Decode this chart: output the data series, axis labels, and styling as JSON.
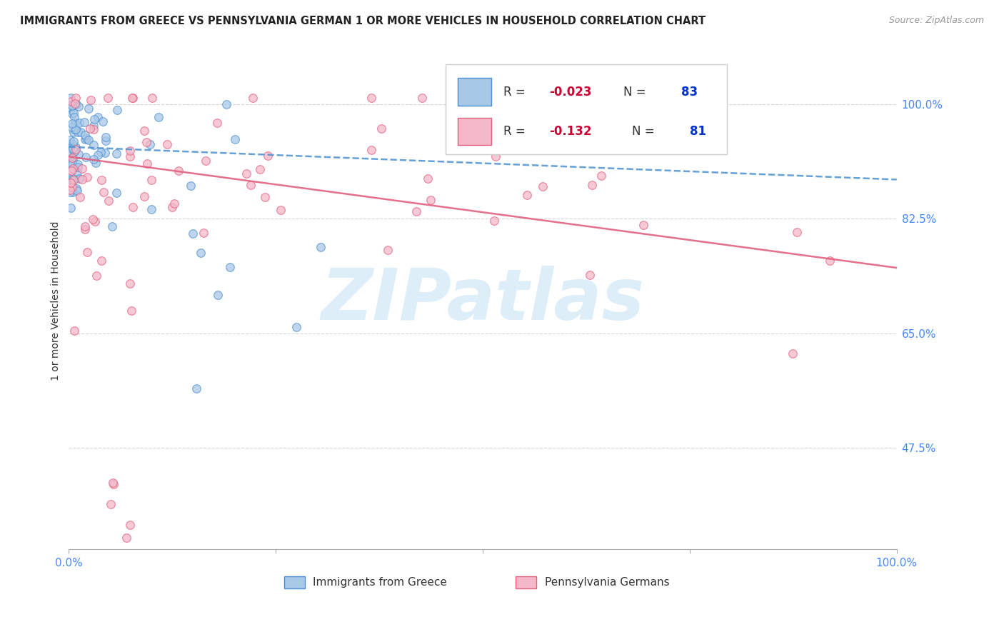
{
  "title": "IMMIGRANTS FROM GREECE VS PENNSYLVANIA GERMAN 1 OR MORE VEHICLES IN HOUSEHOLD CORRELATION CHART",
  "source": "Source: ZipAtlas.com",
  "ylabel": "1 or more Vehicles in Household",
  "ytick_labels": [
    "100.0%",
    "82.5%",
    "65.0%",
    "47.5%"
  ],
  "ytick_values": [
    1.0,
    0.825,
    0.65,
    0.475
  ],
  "xlim": [
    0.0,
    1.0
  ],
  "ylim": [
    0.32,
    1.08
  ],
  "color_blue": "#a8c8e8",
  "color_pink": "#f4b8c8",
  "edge_blue": "#4a90d0",
  "edge_pink": "#e06080",
  "trendline_blue_color": "#4a90d0",
  "trendline_pink_color": "#e06080",
  "background_color": "#ffffff",
  "watermark": "ZIPatlas",
  "watermark_color": "#ddeef8",
  "grid_color": "#cccccc",
  "title_color": "#222222",
  "label_color": "#333333",
  "tick_color": "#4488ff",
  "source_color": "#999999",
  "blue_trendline_x0": 0.0,
  "blue_trendline_y0": 0.935,
  "blue_trendline_x1": 1.0,
  "blue_trendline_y1": 0.885,
  "pink_trendline_x0": 0.0,
  "pink_trendline_y0": 0.92,
  "pink_trendline_x1": 1.0,
  "pink_trendline_y1": 0.75,
  "legend_r1": "R = ",
  "legend_rv1": "-0.023",
  "legend_n1": "N = ",
  "legend_nv1": "83",
  "legend_r2": "R =  ",
  "legend_rv2": "-0.132",
  "legend_n2": "N = ",
  "legend_nv2": "81",
  "legend_color_r": "#cc0033",
  "legend_color_n": "#0033cc",
  "legend_color_label": "#333333"
}
